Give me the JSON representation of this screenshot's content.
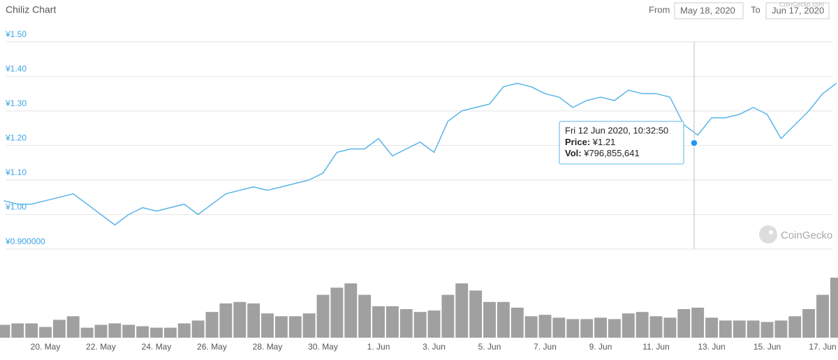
{
  "title": "Chiliz Chart",
  "range": {
    "from_label": "From",
    "from": "May 18, 2020",
    "to_label": "To",
    "to": "Jun 17, 2020"
  },
  "credit": "CoinGecko.com",
  "watermark": "CoinGecko",
  "tooltip": {
    "title": "Fri 12 Jun 2020, 10:32:50",
    "price_label": "Price:",
    "price": "¥1.21",
    "vol_label": "Vol:",
    "vol": "¥796,855,641"
  },
  "chart_data": {
    "type": "line",
    "categories": [
      null,
      null,
      null,
      "20. May",
      null,
      null,
      null,
      "22. May",
      null,
      null,
      null,
      "24. May",
      null,
      null,
      null,
      "26. May",
      null,
      null,
      null,
      "28. May",
      null,
      null,
      null,
      "30. May",
      null,
      null,
      null,
      "1. Jun",
      null,
      null,
      null,
      "3. Jun",
      null,
      null,
      null,
      "5. Jun",
      null,
      null,
      null,
      "7. Jun",
      null,
      null,
      null,
      "9. Jun",
      null,
      null,
      null,
      "11. Jun",
      null,
      null,
      null,
      "13. Jun",
      null,
      null,
      null,
      "15. Jun",
      null,
      null,
      null,
      "17. Jun",
      null
    ],
    "values": [
      1.04,
      1.03,
      1.03,
      1.04,
      1.05,
      1.06,
      1.03,
      1.0,
      0.97,
      1.0,
      1.02,
      1.01,
      1.02,
      1.03,
      1.0,
      1.03,
      1.06,
      1.07,
      1.08,
      1.07,
      1.08,
      1.09,
      1.1,
      1.12,
      1.18,
      1.19,
      1.19,
      1.22,
      1.17,
      1.19,
      1.21,
      1.18,
      1.27,
      1.3,
      1.31,
      1.32,
      1.37,
      1.38,
      1.37,
      1.35,
      1.34,
      1.31,
      1.33,
      1.34,
      1.33,
      1.36,
      1.35,
      1.35,
      1.34,
      1.26,
      1.23,
      1.28,
      1.28,
      1.29,
      1.31,
      1.29,
      1.22,
      1.26,
      1.3,
      1.35,
      1.38
    ],
    "color": "#5ab4e8",
    "ylim": [
      0.9,
      1.5
    ],
    "yticks": [
      {
        "value": 0.9,
        "label": "¥0.900000"
      },
      {
        "value": 1.0,
        "label": "¥1.00"
      },
      {
        "value": 1.1,
        "label": "¥1.10"
      },
      {
        "value": 1.2,
        "label": "¥1.20"
      },
      {
        "value": 1.3,
        "label": "¥1.30"
      },
      {
        "value": 1.4,
        "label": "¥1.40"
      },
      {
        "value": 1.5,
        "label": "¥1.50"
      }
    ],
    "grid": true,
    "volume": {
      "type": "bar",
      "color": "#a0a0a0",
      "values": [
        324000000,
        360000000,
        360000000,
        270000000,
        450000000,
        540000000,
        252000000,
        324000000,
        360000000,
        324000000,
        288000000,
        252000000,
        252000000,
        360000000,
        432000000,
        648000000,
        864000000,
        900000000,
        864000000,
        612000000,
        540000000,
        540000000,
        612000000,
        1080000000,
        1260000000,
        1368000000,
        1080000000,
        792000000,
        792000000,
        720000000,
        648000000,
        684000000,
        1080000000,
        1368000000,
        1188000000,
        900000000,
        900000000,
        756000000,
        540000000,
        576000000,
        504000000,
        468000000,
        468000000,
        504000000,
        468000000,
        612000000,
        648000000,
        540000000,
        504000000,
        720000000,
        756000000,
        504000000,
        432000000,
        432000000,
        432000000,
        396000000,
        432000000,
        540000000,
        720000000,
        1080000000,
        1512000000
      ]
    }
  }
}
